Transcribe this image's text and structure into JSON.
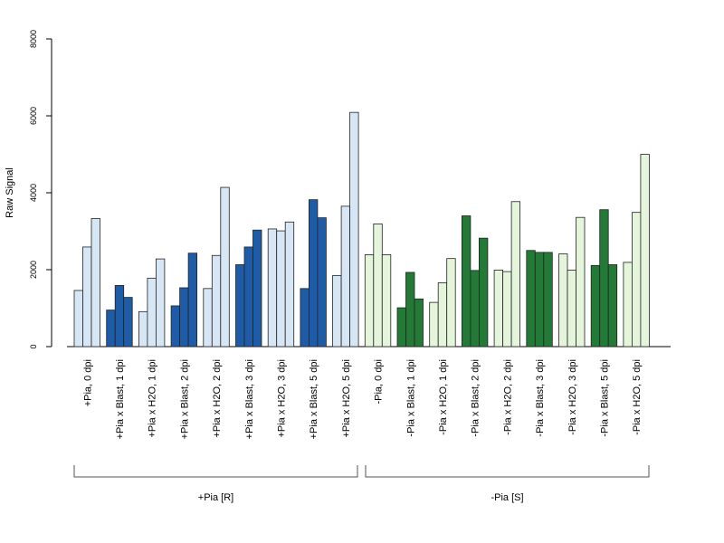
{
  "chart_data": {
    "type": "bar",
    "ylabel": "Raw Signal",
    "ylim": [
      0,
      8000
    ],
    "yticks": [
      0,
      2000,
      4000,
      6000,
      8000
    ],
    "grid": false,
    "legend": "none",
    "colors": {
      "pia_plus_light": "#d6e6f5",
      "pia_plus_dark": "#1f5ca8",
      "pia_minus_light": "#e4f5dc",
      "pia_minus_dark": "#227a36",
      "edge": "#222222"
    },
    "groups": [
      {
        "label": "+Pia [R]",
        "from": 0,
        "to": 8
      },
      {
        "label": "-Pia [S]",
        "from": 9,
        "to": 17
      }
    ],
    "categories": [
      {
        "label": "+Pia, 0 dpi",
        "values": [
          1460,
          2590,
          3330
        ],
        "shade": "pia_plus_light"
      },
      {
        "label": "+Pia x Blast, 1 dpi",
        "values": [
          950,
          1590,
          1280
        ],
        "shade": "pia_plus_dark"
      },
      {
        "label": "+Pia x H2O, 1 dpi",
        "values": [
          910,
          1780,
          2280
        ],
        "shade": "pia_plus_light"
      },
      {
        "label": "+Pia x Blast, 2 dpi",
        "values": [
          1060,
          1530,
          2430
        ],
        "shade": "pia_plus_dark"
      },
      {
        "label": "+Pia x H2O, 2 dpi",
        "values": [
          1510,
          2370,
          4140
        ],
        "shade": "pia_plus_light"
      },
      {
        "label": "+Pia x Blast, 3 dpi",
        "values": [
          2130,
          2590,
          3030
        ],
        "shade": "pia_plus_dark"
      },
      {
        "label": "+Pia x H2O, 3 dpi",
        "values": [
          3060,
          3010,
          3240
        ],
        "shade": "pia_plus_light"
      },
      {
        "label": "+Pia x Blast, 5 dpi",
        "values": [
          1510,
          3820,
          3350
        ],
        "shade": "pia_plus_dark"
      },
      {
        "label": "+Pia x H2O, 5 dpi",
        "values": [
          1850,
          3650,
          6090
        ],
        "shade": "pia_plus_light"
      },
      {
        "label": "-Pia, 0 dpi",
        "values": [
          2390,
          3190,
          2390
        ],
        "shade": "pia_minus_light"
      },
      {
        "label": "-Pia x Blast, 1 dpi",
        "values": [
          1010,
          1930,
          1240
        ],
        "shade": "pia_minus_dark"
      },
      {
        "label": "-Pia x H2O, 1 dpi",
        "values": [
          1150,
          1660,
          2290
        ],
        "shade": "pia_minus_light"
      },
      {
        "label": "-Pia x Blast, 2 dpi",
        "values": [
          3400,
          1980,
          2820
        ],
        "shade": "pia_minus_dark"
      },
      {
        "label": "-Pia x H2O, 2 dpi",
        "values": [
          1990,
          1950,
          3770
        ],
        "shade": "pia_minus_light"
      },
      {
        "label": "-Pia x Blast, 3 dpi",
        "values": [
          2500,
          2450,
          2450
        ],
        "shade": "pia_minus_dark"
      },
      {
        "label": "-Pia x H2O, 3 dpi",
        "values": [
          2410,
          1990,
          3360
        ],
        "shade": "pia_minus_light"
      },
      {
        "label": "-Pia x Blast, 5 dpi",
        "values": [
          2110,
          3560,
          2130
        ],
        "shade": "pia_minus_dark"
      },
      {
        "label": "-Pia x H2O, 5 dpi",
        "values": [
          2190,
          3490,
          5000
        ],
        "shade": "pia_minus_light"
      }
    ]
  }
}
